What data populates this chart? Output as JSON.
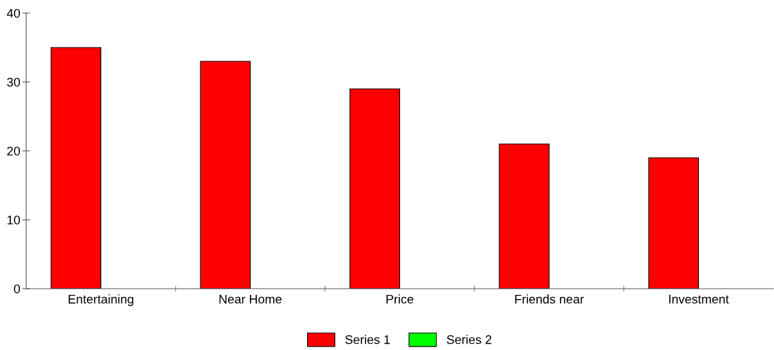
{
  "chart_data": {
    "type": "bar",
    "categories": [
      "Entertaining",
      "Near Home",
      "Price",
      "Friends near",
      "Investment"
    ],
    "series": [
      {
        "name": "Series 1",
        "color": "#ff0000",
        "values": [
          35,
          33,
          29,
          21,
          19
        ]
      },
      {
        "name": "Series 2",
        "color": "#00ff00",
        "values": [
          null,
          null,
          null,
          null,
          null
        ]
      }
    ],
    "ylim": [
      0,
      40
    ],
    "yticks": [
      0,
      10,
      20,
      30,
      40
    ],
    "grid": false,
    "legend": "bottom"
  }
}
